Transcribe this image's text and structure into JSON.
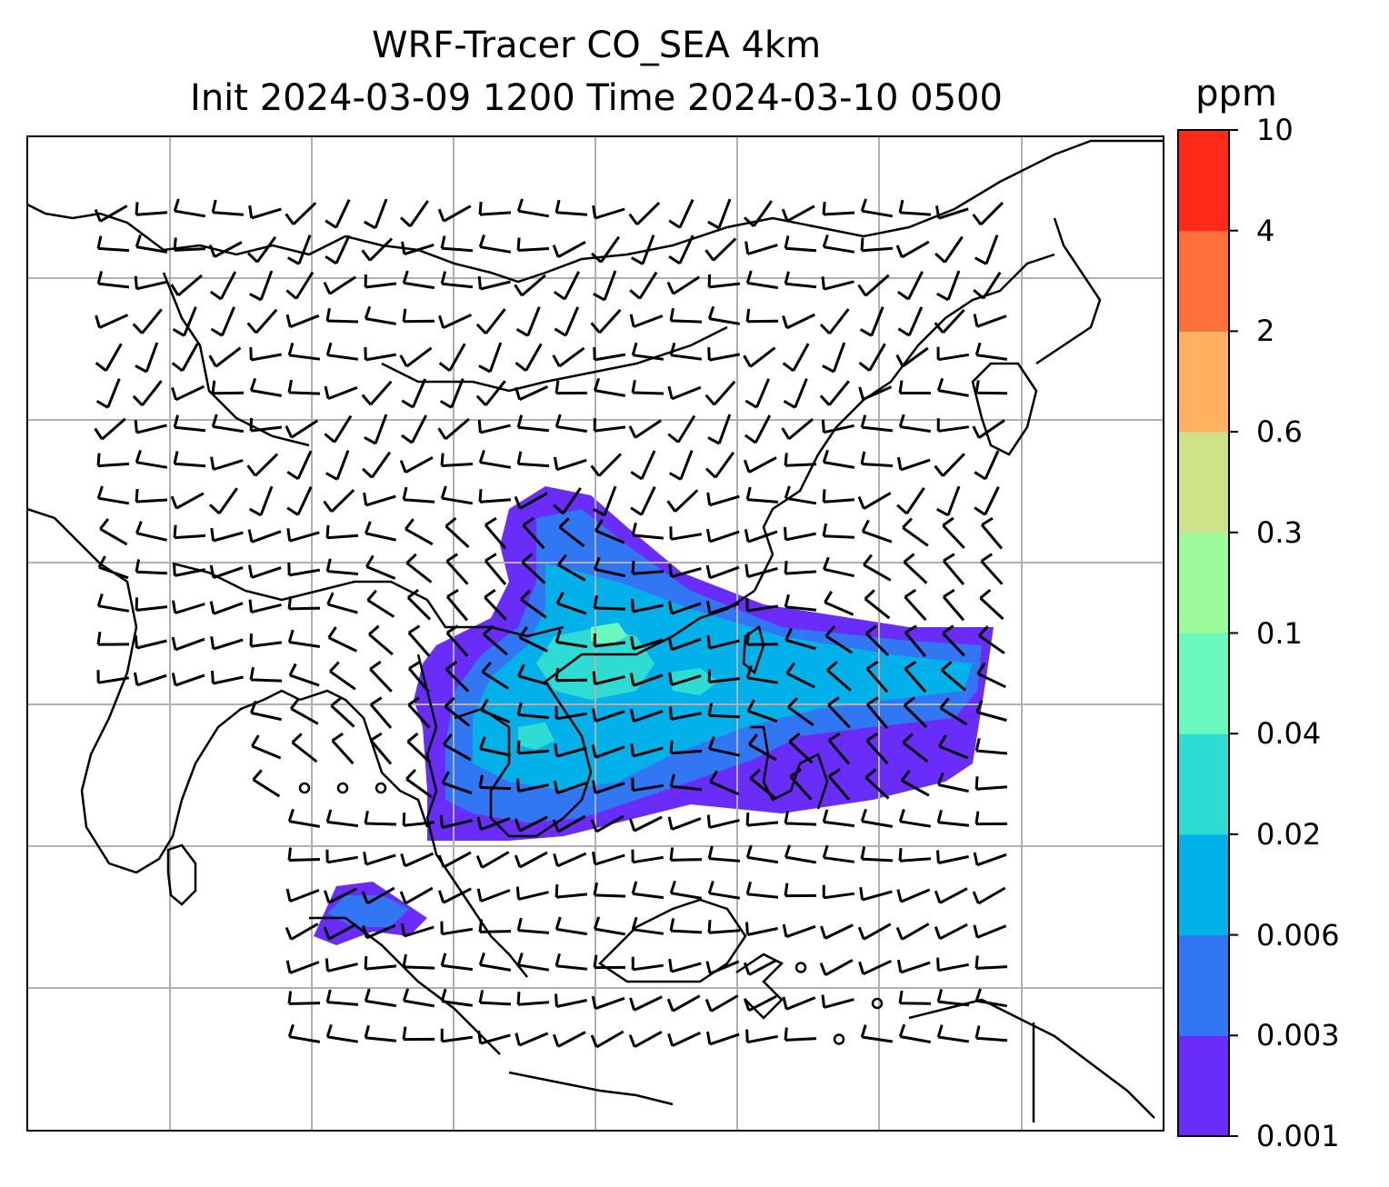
{
  "map": {
    "title_line1": "WRF-Tracer CO_SEA 4km",
    "title_line2": "Init 2024-03-09 1200 Time 2024-03-10 0500",
    "variable": "CO tracer concentration",
    "overlay": "wind barbs",
    "gridlines": true,
    "colorbar": {
      "label": "ppm",
      "levels": [
        "0.001",
        "0.003",
        "0.006",
        "0.02",
        "0.04",
        "0.1",
        "0.3",
        "0.6",
        "2",
        "4",
        "10"
      ],
      "colors": [
        "#6a2cf8",
        "#3176f2",
        "#02b1e9",
        "#2fdcd3",
        "#6afac0",
        "#9cfa9a",
        "#cfe189",
        "#ffb15f",
        "#ff703d",
        "#ff2a18"
      ]
    }
  }
}
